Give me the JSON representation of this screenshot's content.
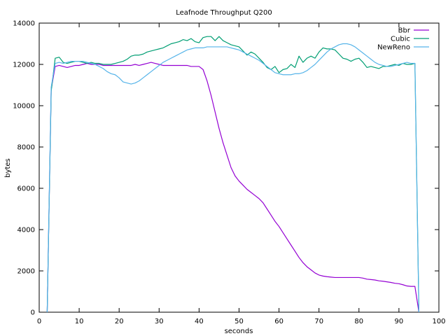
{
  "chart_data": {
    "type": "line",
    "title": "Leafnode Throughput Q200",
    "xlabel": "seconds",
    "ylabel": "bytes",
    "xlim": [
      0,
      100
    ],
    "ylim": [
      0,
      14000
    ],
    "x_ticks": [
      0,
      10,
      20,
      30,
      40,
      50,
      60,
      70,
      80,
      90,
      100
    ],
    "y_ticks": [
      0,
      2000,
      4000,
      6000,
      8000,
      10000,
      12000,
      14000
    ],
    "grid": false,
    "legend_position": "top-right",
    "series": [
      {
        "name": "Bbr",
        "color": "#9400d3",
        "points": [
          [
            2,
            0
          ],
          [
            3,
            10800
          ],
          [
            4,
            11900
          ],
          [
            5,
            11950
          ],
          [
            6,
            11900
          ],
          [
            7,
            11850
          ],
          [
            8,
            11900
          ],
          [
            9,
            11950
          ],
          [
            10,
            11950
          ],
          [
            11,
            12000
          ],
          [
            12,
            12050
          ],
          [
            13,
            12000
          ],
          [
            14,
            12000
          ],
          [
            15,
            12000
          ],
          [
            16,
            11950
          ],
          [
            17,
            11950
          ],
          [
            18,
            11950
          ],
          [
            19,
            11950
          ],
          [
            20,
            11950
          ],
          [
            21,
            11950
          ],
          [
            22,
            11950
          ],
          [
            23,
            11950
          ],
          [
            24,
            12000
          ],
          [
            25,
            11950
          ],
          [
            26,
            12000
          ],
          [
            27,
            12050
          ],
          [
            28,
            12100
          ],
          [
            29,
            12050
          ],
          [
            30,
            12000
          ],
          [
            31,
            11950
          ],
          [
            32,
            11950
          ],
          [
            33,
            11950
          ],
          [
            34,
            11950
          ],
          [
            35,
            11950
          ],
          [
            36,
            11950
          ],
          [
            37,
            11950
          ],
          [
            38,
            11900
          ],
          [
            39,
            11900
          ],
          [
            40,
            11900
          ],
          [
            41,
            11750
          ],
          [
            42,
            11200
          ],
          [
            43,
            10500
          ],
          [
            44,
            9700
          ],
          [
            45,
            8900
          ],
          [
            46,
            8200
          ],
          [
            47,
            7600
          ],
          [
            48,
            7000
          ],
          [
            49,
            6600
          ],
          [
            50,
            6350
          ],
          [
            51,
            6150
          ],
          [
            52,
            5950
          ],
          [
            53,
            5800
          ],
          [
            54,
            5650
          ],
          [
            55,
            5500
          ],
          [
            56,
            5300
          ],
          [
            57,
            5000
          ],
          [
            58,
            4700
          ],
          [
            59,
            4400
          ],
          [
            60,
            4150
          ],
          [
            61,
            3850
          ],
          [
            62,
            3550
          ],
          [
            63,
            3250
          ],
          [
            64,
            2950
          ],
          [
            65,
            2650
          ],
          [
            66,
            2400
          ],
          [
            67,
            2200
          ],
          [
            68,
            2050
          ],
          [
            69,
            1900
          ],
          [
            70,
            1800
          ],
          [
            71,
            1750
          ],
          [
            72,
            1720
          ],
          [
            73,
            1700
          ],
          [
            74,
            1680
          ],
          [
            75,
            1680
          ],
          [
            76,
            1680
          ],
          [
            77,
            1680
          ],
          [
            78,
            1680
          ],
          [
            79,
            1680
          ],
          [
            80,
            1680
          ],
          [
            81,
            1650
          ],
          [
            82,
            1600
          ],
          [
            83,
            1580
          ],
          [
            84,
            1560
          ],
          [
            85,
            1520
          ],
          [
            86,
            1500
          ],
          [
            87,
            1470
          ],
          [
            88,
            1440
          ],
          [
            89,
            1400
          ],
          [
            90,
            1380
          ],
          [
            91,
            1330
          ],
          [
            92,
            1270
          ],
          [
            93,
            1250
          ],
          [
            94,
            1250
          ],
          [
            95,
            0
          ]
        ]
      },
      {
        "name": "Cubic",
        "color": "#009e73",
        "points": [
          [
            2,
            0
          ],
          [
            3,
            10700
          ],
          [
            4,
            12300
          ],
          [
            5,
            12350
          ],
          [
            6,
            12100
          ],
          [
            7,
            12050
          ],
          [
            8,
            12100
          ],
          [
            9,
            12150
          ],
          [
            10,
            12150
          ],
          [
            11,
            12100
          ],
          [
            12,
            12050
          ],
          [
            13,
            12100
          ],
          [
            14,
            12050
          ],
          [
            15,
            12050
          ],
          [
            16,
            12000
          ],
          [
            17,
            12000
          ],
          [
            18,
            12000
          ],
          [
            19,
            12050
          ],
          [
            20,
            12100
          ],
          [
            21,
            12150
          ],
          [
            22,
            12250
          ],
          [
            23,
            12400
          ],
          [
            24,
            12450
          ],
          [
            25,
            12450
          ],
          [
            26,
            12500
          ],
          [
            27,
            12600
          ],
          [
            28,
            12650
          ],
          [
            29,
            12700
          ],
          [
            30,
            12750
          ],
          [
            31,
            12800
          ],
          [
            32,
            12900
          ],
          [
            33,
            13000
          ],
          [
            34,
            13050
          ],
          [
            35,
            13100
          ],
          [
            36,
            13200
          ],
          [
            37,
            13150
          ],
          [
            38,
            13250
          ],
          [
            39,
            13100
          ],
          [
            40,
            13050
          ],
          [
            41,
            13300
          ],
          [
            42,
            13350
          ],
          [
            43,
            13350
          ],
          [
            44,
            13150
          ],
          [
            45,
            13350
          ],
          [
            46,
            13150
          ],
          [
            47,
            13050
          ],
          [
            48,
            12950
          ],
          [
            49,
            12900
          ],
          [
            50,
            12850
          ],
          [
            51,
            12650
          ],
          [
            52,
            12450
          ],
          [
            53,
            12600
          ],
          [
            54,
            12500
          ],
          [
            55,
            12300
          ],
          [
            56,
            12100
          ],
          [
            57,
            11850
          ],
          [
            58,
            11750
          ],
          [
            59,
            11900
          ],
          [
            60,
            11600
          ],
          [
            61,
            11750
          ],
          [
            62,
            11800
          ],
          [
            63,
            12000
          ],
          [
            64,
            11850
          ],
          [
            65,
            12400
          ],
          [
            66,
            12100
          ],
          [
            67,
            12300
          ],
          [
            68,
            12400
          ],
          [
            69,
            12300
          ],
          [
            70,
            12600
          ],
          [
            71,
            12800
          ],
          [
            72,
            12750
          ],
          [
            73,
            12750
          ],
          [
            74,
            12700
          ],
          [
            75,
            12500
          ],
          [
            76,
            12300
          ],
          [
            77,
            12250
          ],
          [
            78,
            12150
          ],
          [
            79,
            12250
          ],
          [
            80,
            12300
          ],
          [
            81,
            12100
          ],
          [
            82,
            11850
          ],
          [
            83,
            11900
          ],
          [
            84,
            11850
          ],
          [
            85,
            11800
          ],
          [
            86,
            11900
          ],
          [
            87,
            11900
          ],
          [
            88,
            11950
          ],
          [
            89,
            12000
          ],
          [
            90,
            11950
          ],
          [
            91,
            12050
          ],
          [
            92,
            12000
          ],
          [
            93,
            12000
          ],
          [
            94,
            12050
          ],
          [
            95,
            0
          ]
        ]
      },
      {
        "name": "NewReno",
        "color": "#56b4e9",
        "points": [
          [
            2,
            0
          ],
          [
            3,
            10900
          ],
          [
            4,
            12050
          ],
          [
            5,
            12100
          ],
          [
            6,
            12050
          ],
          [
            7,
            12100
          ],
          [
            8,
            12150
          ],
          [
            9,
            12150
          ],
          [
            10,
            12150
          ],
          [
            11,
            12150
          ],
          [
            12,
            12100
          ],
          [
            13,
            12050
          ],
          [
            14,
            12000
          ],
          [
            15,
            11900
          ],
          [
            16,
            11800
          ],
          [
            17,
            11650
          ],
          [
            18,
            11550
          ],
          [
            19,
            11500
          ],
          [
            20,
            11350
          ],
          [
            21,
            11150
          ],
          [
            22,
            11100
          ],
          [
            23,
            11050
          ],
          [
            24,
            11100
          ],
          [
            25,
            11200
          ],
          [
            26,
            11350
          ],
          [
            27,
            11500
          ],
          [
            28,
            11650
          ],
          [
            29,
            11800
          ],
          [
            30,
            11950
          ],
          [
            31,
            12100
          ],
          [
            32,
            12200
          ],
          [
            33,
            12300
          ],
          [
            34,
            12400
          ],
          [
            35,
            12500
          ],
          [
            36,
            12600
          ],
          [
            37,
            12700
          ],
          [
            38,
            12750
          ],
          [
            39,
            12800
          ],
          [
            40,
            12800
          ],
          [
            41,
            12800
          ],
          [
            42,
            12850
          ],
          [
            43,
            12850
          ],
          [
            44,
            12850
          ],
          [
            45,
            12850
          ],
          [
            46,
            12850
          ],
          [
            47,
            12850
          ],
          [
            48,
            12800
          ],
          [
            49,
            12750
          ],
          [
            50,
            12700
          ],
          [
            51,
            12600
          ],
          [
            52,
            12500
          ],
          [
            53,
            12400
          ],
          [
            54,
            12300
          ],
          [
            55,
            12200
          ],
          [
            56,
            12050
          ],
          [
            57,
            11900
          ],
          [
            58,
            11750
          ],
          [
            59,
            11600
          ],
          [
            60,
            11550
          ],
          [
            61,
            11500
          ],
          [
            62,
            11500
          ],
          [
            63,
            11500
          ],
          [
            64,
            11550
          ],
          [
            65,
            11550
          ],
          [
            66,
            11600
          ],
          [
            67,
            11700
          ],
          [
            68,
            11850
          ],
          [
            69,
            12000
          ],
          [
            70,
            12200
          ],
          [
            71,
            12400
          ],
          [
            72,
            12600
          ],
          [
            73,
            12750
          ],
          [
            74,
            12850
          ],
          [
            75,
            12950
          ],
          [
            76,
            13000
          ],
          [
            77,
            13000
          ],
          [
            78,
            12950
          ],
          [
            79,
            12850
          ],
          [
            80,
            12700
          ],
          [
            81,
            12550
          ],
          [
            82,
            12400
          ],
          [
            83,
            12250
          ],
          [
            84,
            12100
          ],
          [
            85,
            12000
          ],
          [
            86,
            11950
          ],
          [
            87,
            11900
          ],
          [
            88,
            11900
          ],
          [
            89,
            11950
          ],
          [
            90,
            12000
          ],
          [
            91,
            12050
          ],
          [
            92,
            12100
          ],
          [
            93,
            12050
          ],
          [
            94,
            12050
          ],
          [
            95,
            0
          ]
        ]
      }
    ]
  }
}
